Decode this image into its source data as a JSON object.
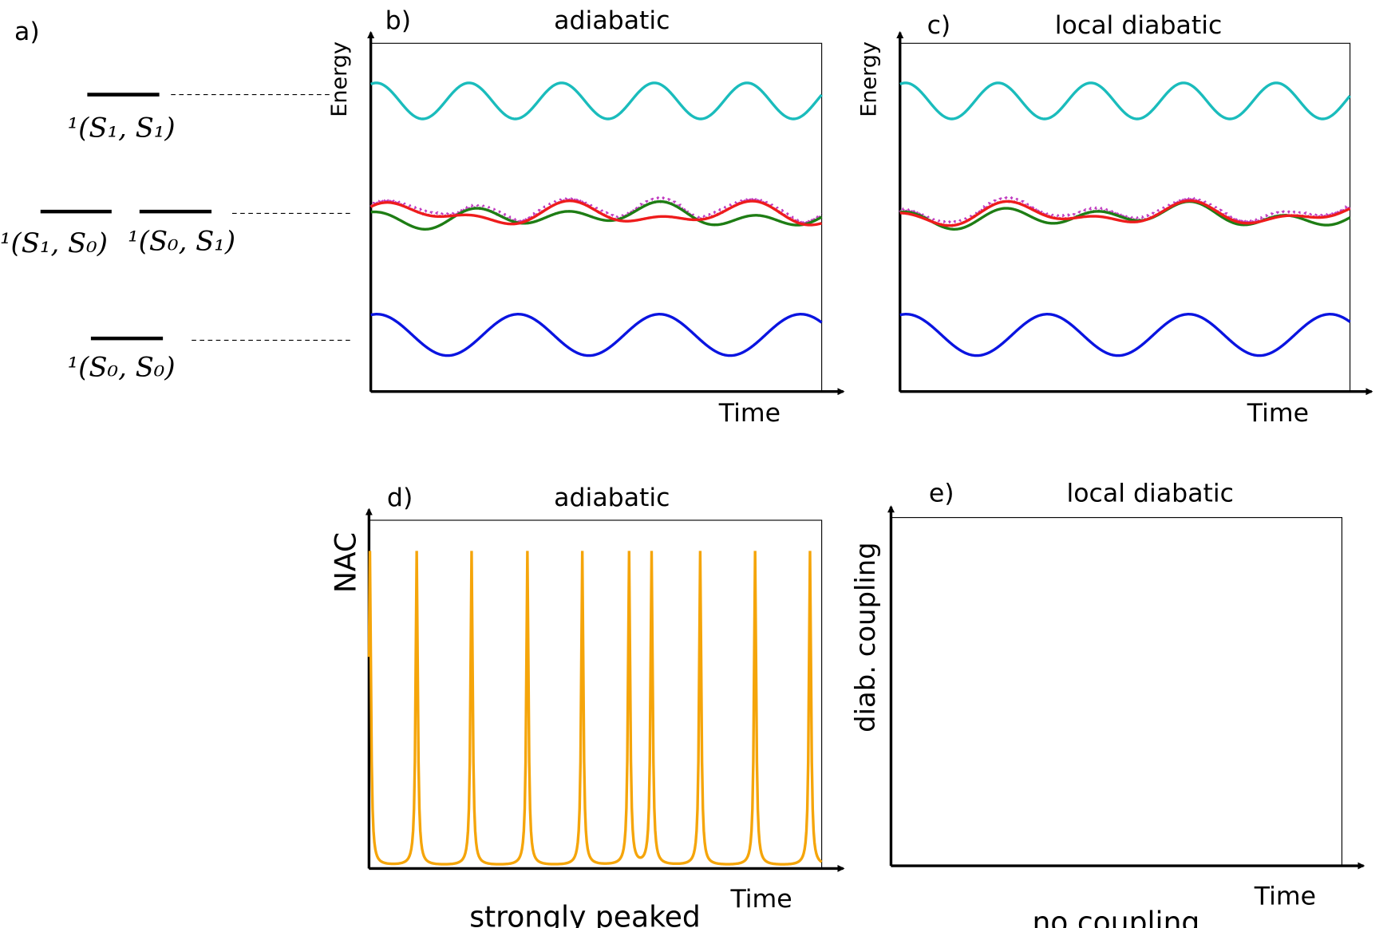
{
  "panel_a": {
    "label": "a)",
    "states": [
      "¹(S₁, S₁)",
      "¹(S₁, S₀)",
      "¹(S₀, S₁)",
      "¹(S₀, S₀)"
    ]
  },
  "panels": [
    {
      "label": "b)",
      "title": "adiabatic",
      "y_label": "Energy",
      "x_label": "Time"
    },
    {
      "label": "c)",
      "title": "local diabatic",
      "y_label": "Energy",
      "x_label": "Time"
    },
    {
      "label": "d)",
      "title": "adiabatic",
      "y_label": "NAC",
      "x_label": "Time",
      "caption": "strongly peaked"
    },
    {
      "label": "e)",
      "title": "local diabatic",
      "y_label": "diab. coupling",
      "x_label": "Time",
      "caption": "no coupling"
    }
  ]
}
